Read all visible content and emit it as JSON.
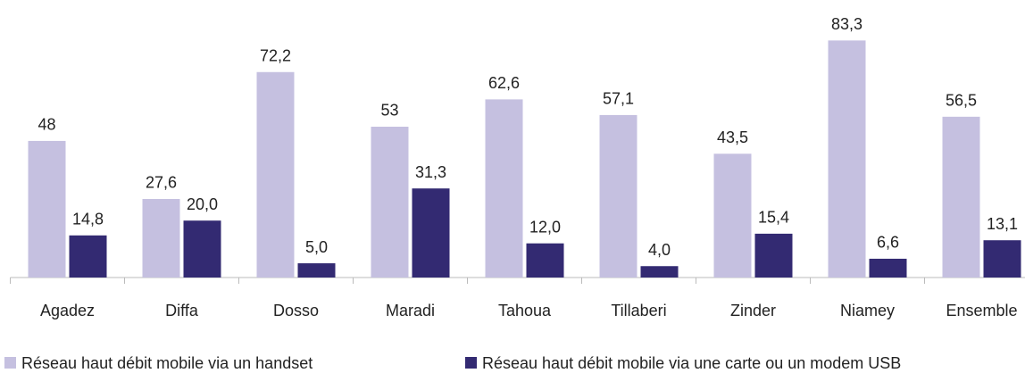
{
  "chart_data": {
    "type": "bar",
    "categories": [
      "Agadez",
      "Diffa",
      "Dosso",
      "Maradi",
      "Tahoua",
      "Tillaberi",
      "Zinder",
      "Niamey",
      "Ensemble"
    ],
    "series": [
      {
        "name": "Réseau haut débit mobile via un handset",
        "color": "#c5c0e0",
        "values": [
          48,
          27.6,
          72.2,
          53,
          62.6,
          57.1,
          43.5,
          83.3,
          56.5
        ],
        "value_labels": [
          "48",
          "27,6",
          "72,2",
          "53",
          "62,6",
          "57,1",
          "43,5",
          "83,3",
          "56,5"
        ]
      },
      {
        "name": "Réseau haut débit mobile via une carte ou un modem USB",
        "color": "#332a72",
        "values": [
          14.8,
          20.0,
          5.0,
          31.3,
          12.0,
          4.0,
          15.4,
          6.6,
          13.1
        ],
        "value_labels": [
          "14,8",
          "20,0",
          "5,0",
          "31,3",
          "12,0",
          "4,0",
          "15,4",
          "6,6",
          "13,1"
        ]
      }
    ],
    "ylim": [
      0,
      90
    ],
    "legend": "bottom"
  }
}
